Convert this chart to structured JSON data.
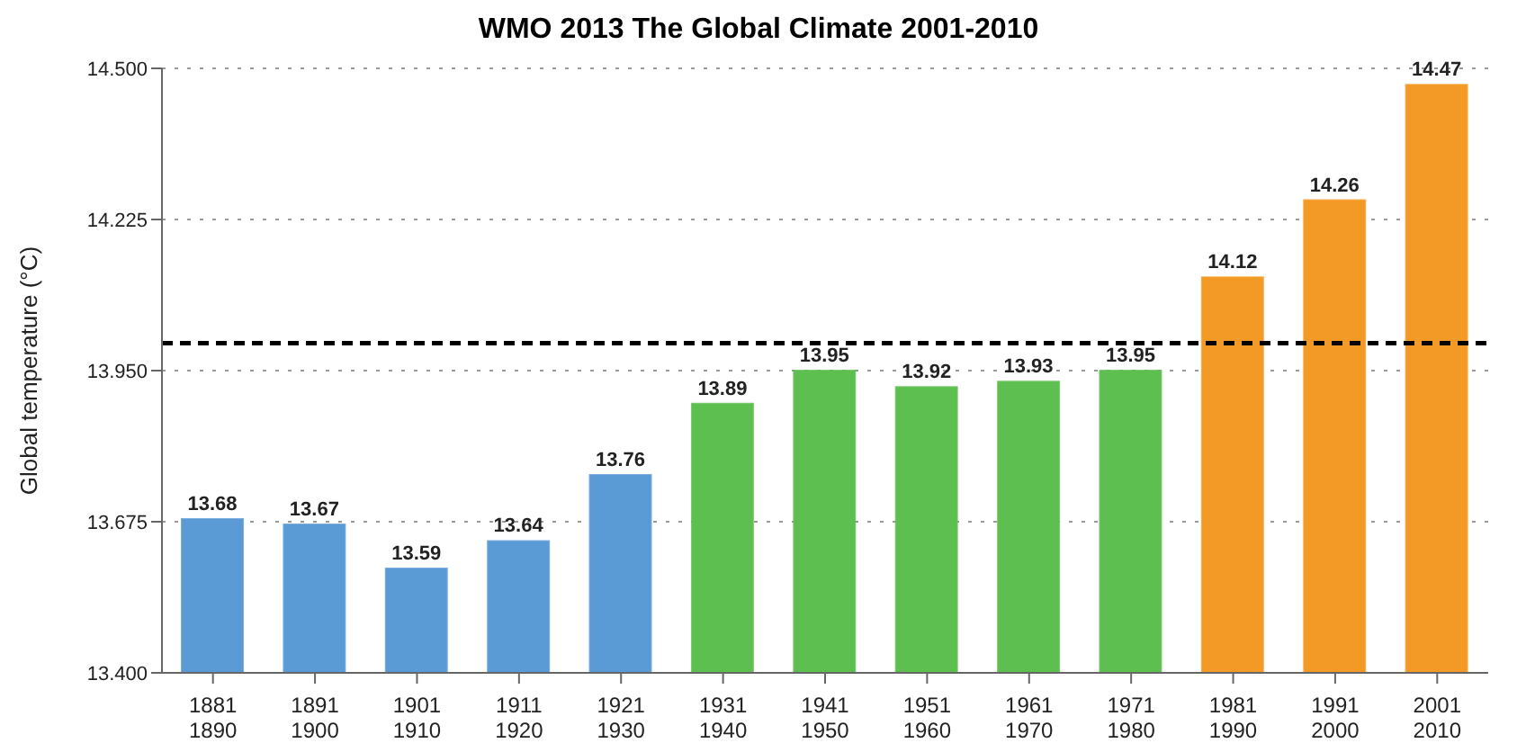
{
  "chart_data": {
    "type": "bar",
    "title": "WMO 2013  The Global Climate 2001-2010",
    "ylabel": "Global temperature (°C)",
    "categories": [
      "1881\n1890",
      "1891\n1900",
      "1901\n1910",
      "1911\n1920",
      "1921\n1930",
      "1931\n1940",
      "1941\n1950",
      "1951\n1960",
      "1961\n1970",
      "1971\n1980",
      "1981\n1990",
      "1991\n2000",
      "2001\n2010"
    ],
    "values": [
      13.68,
      13.67,
      13.59,
      13.64,
      13.76,
      13.89,
      13.95,
      13.92,
      13.93,
      13.95,
      14.12,
      14.26,
      14.47
    ],
    "colors": [
      "#5b9bd5",
      "#5b9bd5",
      "#5b9bd5",
      "#5b9bd5",
      "#5b9bd5",
      "#5cbf4f",
      "#5cbf4f",
      "#5cbf4f",
      "#5cbf4f",
      "#5cbf4f",
      "#f39a26",
      "#f39a26",
      "#f39a26"
    ],
    "ylim": [
      13.4,
      14.5
    ],
    "yticks": [
      {
        "value": 13.4,
        "label": "13.400"
      },
      {
        "value": 13.675,
        "label": "13.675"
      },
      {
        "value": 13.95,
        "label": "13.950"
      },
      {
        "value": 14.225,
        "label": "14.225"
      },
      {
        "value": 14.5,
        "label": "14.500"
      }
    ],
    "grid": "y",
    "data_labels": true,
    "ref_lines": [
      {
        "axis": "y",
        "value": 14.0,
        "line_style": "dashed",
        "color": "#000000"
      }
    ]
  }
}
